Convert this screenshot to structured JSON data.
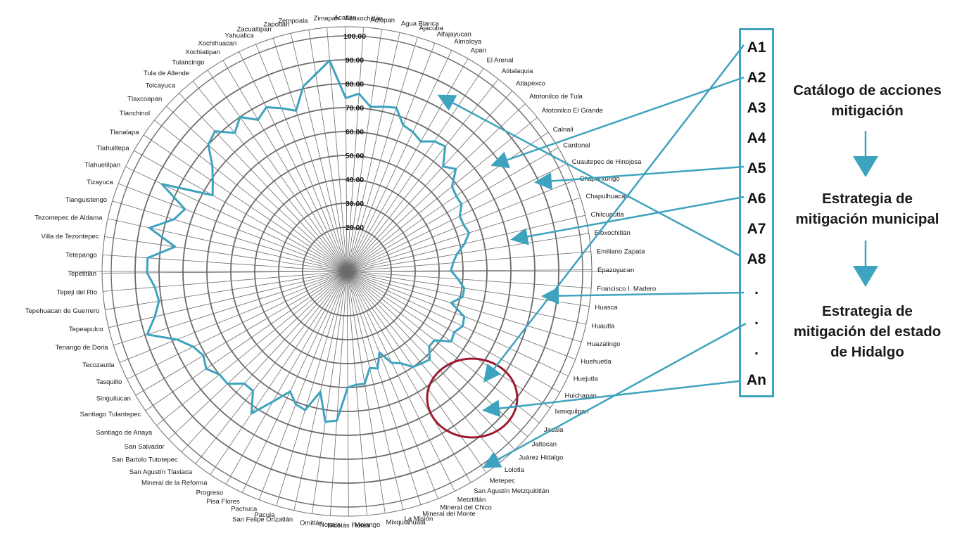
{
  "colors": {
    "accent": "#3ea3bf",
    "highlight": "#9b1b30",
    "grid": "#6b6b6b"
  },
  "chart_data": {
    "type": "radar",
    "title": "",
    "rlim": [
      0,
      100
    ],
    "tick_values": [
      20,
      30,
      40,
      50,
      60,
      70,
      80,
      90,
      100
    ],
    "tick_labels": [
      "20.00",
      "30.00",
      "40.00",
      "50.00",
      "60.00",
      "70.00",
      "80.00",
      "90.00",
      "100.00"
    ],
    "grid_rings": [
      20,
      30,
      40,
      50,
      60,
      70,
      80,
      90,
      100
    ],
    "categories": [
      "Acatlán",
      "Acaxochitlán",
      "Actopan",
      "Agua Blanca",
      "Ajacuba",
      "Alfajayucan",
      "Almoloya",
      "Apan",
      "El Arenal",
      "Atitalaquia",
      "Atlapexco",
      "Atotonilco de Tula",
      "Atotonilco El Grande",
      "Calnali",
      "Cardonal",
      "Cuautepec de Hinojosa",
      "Chapantongo",
      "Chapulhuacan",
      "Chilcuautla",
      "Eloxochitlán",
      "Emiliano Zapata",
      "Epazoyucan",
      "Francisco I. Madero",
      "Huasca",
      "Huautla",
      "Huazalingo",
      "Huehuetla",
      "Huejutla",
      "Huichapan",
      "Ixmiquilpan",
      "Jacala",
      "Jaltocan",
      "Juárez Hidalgo",
      "Lolotla",
      "Metepec",
      "San Agustín Metzquititlán",
      "Metztitlán",
      "Mineral del Chico",
      "Mineral del Monte",
      "La Misión",
      "Mixquiahuala",
      "Molango",
      "Nicolás Flores",
      "Nopala",
      "Omitlán",
      "San Felipe Orizatlán",
      "Pacula",
      "Pachuca",
      "Pisa Flores",
      "Progreso",
      "Mineral de la Reforma",
      "San Agustín Tlaxiaca",
      "San Bartolo Tutotepec",
      "San Salvador",
      "Santiago de Anaya",
      "Santiago Tulantepec",
      "Singuilucan",
      "Tasquillo",
      "Tecozautla",
      "Tenango de Doria",
      "Tepeapulco",
      "Tepehuacan de Guerrero",
      "Tepeji del Río",
      "Tepetitlán",
      "Tetepango",
      "Villa de Tezontepec",
      "Tezontepec de Aldama",
      "Tianguistengo",
      "Tizayuca",
      "Tlahuelilpan",
      "Tlahuiltepa",
      "Tlanalapa",
      "Tlanchinol",
      "Tlaxcoapan",
      "Tolcayuca",
      "Tula de Allende",
      "Tulancingo",
      "Xochiatipan",
      "Xochihuacan",
      "Yahualica",
      "Zacualtipan",
      "Zapotlan",
      "Zempoala",
      "Zimapan"
    ],
    "series": [
      {
        "values": [
          74,
          76,
          71,
          72,
          73,
          67,
          66,
          64,
          67,
          68,
          61,
          64,
          58,
          57,
          57,
          54,
          54,
          55,
          52,
          48,
          46,
          45,
          48,
          51,
          51,
          47,
          54,
          55,
          53,
          54,
          48,
          48,
          52,
          51,
          50,
          46,
          44,
          38,
          44,
          43,
          49,
          49,
          50,
          64,
          65,
          53,
          62,
          61,
          57,
          64,
          73,
          65,
          65,
          70,
          70,
          73,
          71,
          73,
          78,
          89,
          84,
          81,
          82,
          85,
          85,
          74,
          86,
          77,
          74,
          87,
          66,
          69,
          73,
          80,
          82,
          76,
          80,
          75,
          78,
          75,
          72,
          81,
          85,
          90
        ]
      }
    ]
  },
  "annotation": {
    "label": ""
  },
  "actions": {
    "labels": [
      "A1",
      "A2",
      "A3",
      "A4",
      "A5",
      "A6",
      "A7",
      "A8",
      ".",
      ".",
      ".",
      "An"
    ]
  },
  "flow": {
    "step1": "Catálogo de acciones\nmitigación",
    "step2": "Estrategia de\nmitigación municipal",
    "step3": "Estrategia de\nmitigación del estado\nde Hidalgo"
  },
  "connectors": [
    {
      "from": "A1",
      "to_municipality": "Huichapan"
    },
    {
      "from": "A2",
      "to_municipality": "Cuautepec de Hinojosa"
    },
    {
      "from": "A5",
      "to_municipality": "Chapantongo"
    },
    {
      "from": "A6",
      "to_municipality": "Eloxochitlán"
    },
    {
      "from": "A8",
      "to_municipality": "Ajacuba"
    },
    {
      "from": ".",
      "to_municipality": "Huasca"
    },
    {
      "from": ".",
      "to_municipality": "Metepec"
    },
    {
      "from": "An",
      "to_municipality": "Ixmiquilpan"
    }
  ]
}
